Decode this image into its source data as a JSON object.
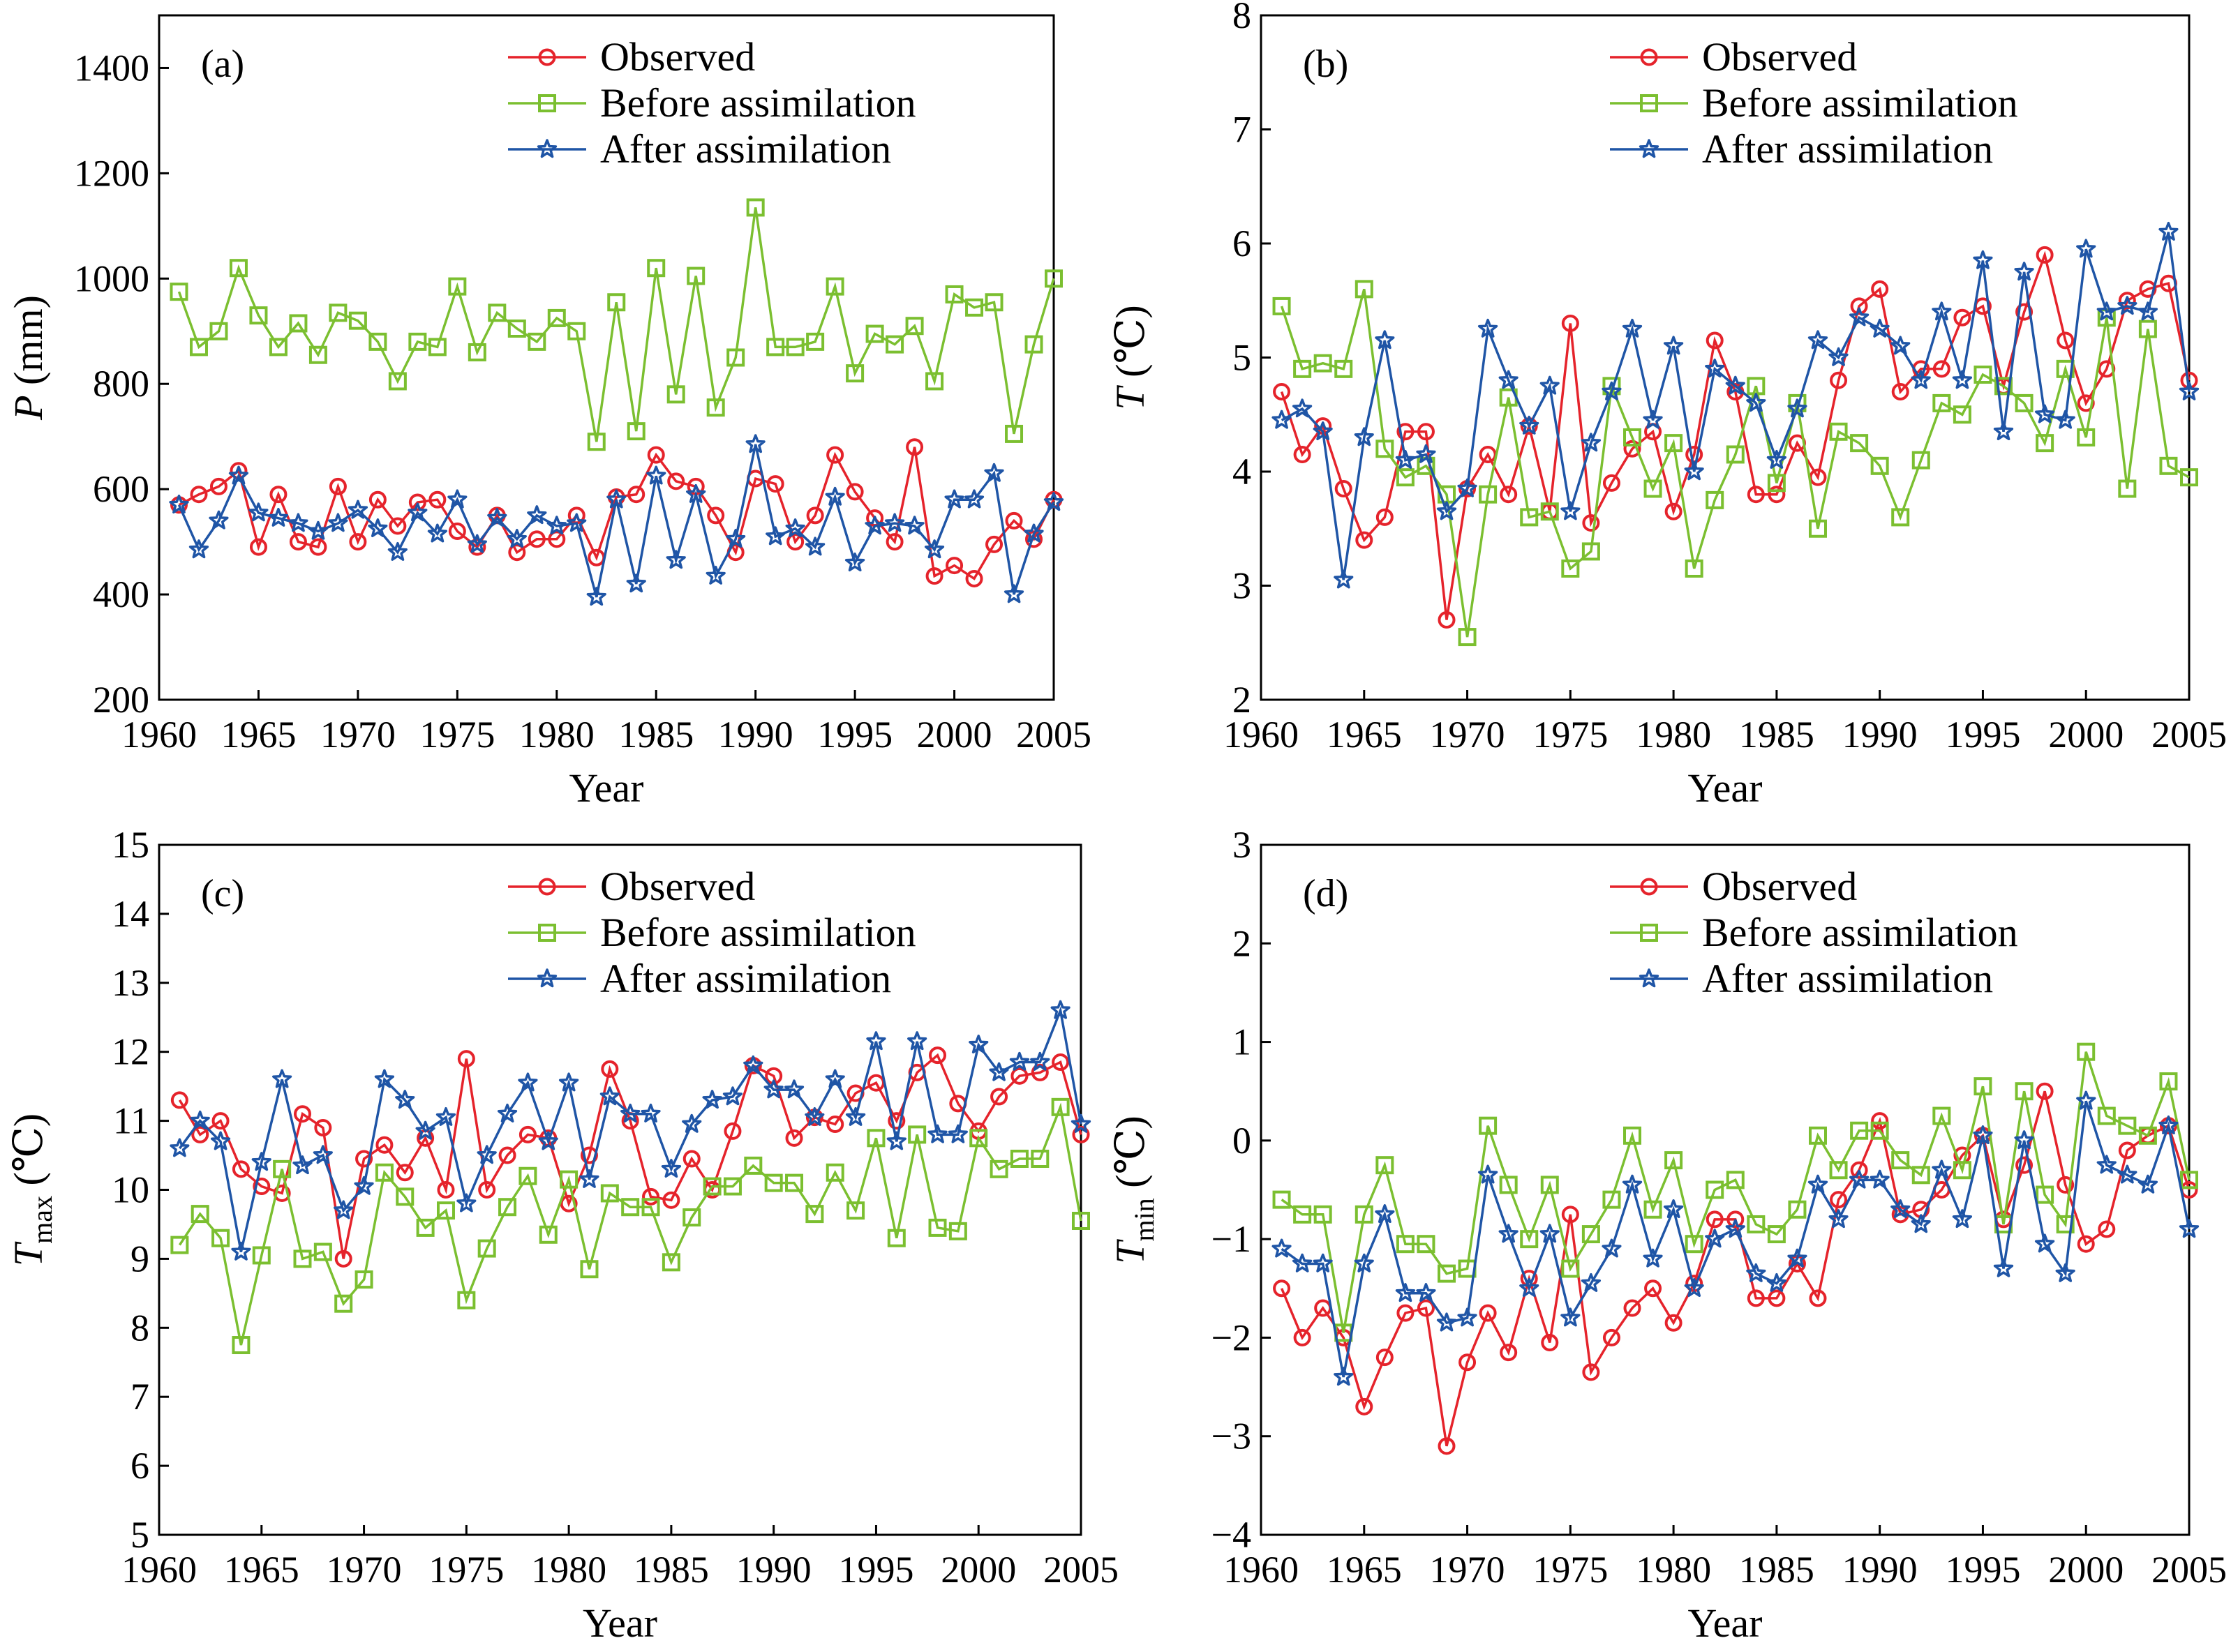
{
  "colors": {
    "observed": "#e5232b",
    "before": "#7bbf30",
    "after": "#1f55a6",
    "axis": "#000000"
  },
  "legend_labels": [
    "Observed",
    "Before assimilation",
    "After assimilation"
  ],
  "chart_data": [
    {
      "type": "line",
      "panel_label": "(a)",
      "xlabel": "Year",
      "ylabel_main": "P",
      "ylabel_sub": "",
      "ylabel_unit": " (mm)",
      "xlim": [
        1960,
        2005
      ],
      "ylim": [
        200,
        1500
      ],
      "xticks": [
        1960,
        1965,
        1970,
        1975,
        1980,
        1985,
        1990,
        1995,
        2000,
        2005
      ],
      "yticks": [
        200,
        400,
        600,
        800,
        1000,
        1200,
        1400
      ],
      "x": [
        1961,
        1962,
        1963,
        1964,
        1965,
        1966,
        1967,
        1968,
        1969,
        1970,
        1971,
        1972,
        1973,
        1974,
        1975,
        1976,
        1977,
        1978,
        1979,
        1980,
        1981,
        1982,
        1983,
        1984,
        1985,
        1986,
        1987,
        1988,
        1989,
        1990,
        1991,
        1992,
        1993,
        1994,
        1995,
        1996,
        1997,
        1998,
        1999,
        2000,
        2001,
        2002,
        2003,
        2004,
        2005
      ],
      "series": [
        {
          "name": "Observed",
          "values": [
            570,
            590,
            605,
            635,
            490,
            590,
            500,
            490,
            605,
            500,
            580,
            530,
            575,
            580,
            520,
            490,
            550,
            480,
            505,
            505,
            550,
            470,
            585,
            590,
            665,
            615,
            605,
            550,
            480,
            620,
            610,
            500,
            550,
            665,
            595,
            545,
            500,
            680,
            435,
            455,
            430,
            495,
            540,
            505,
            580
          ]
        },
        {
          "name": "Before assimilation",
          "values": [
            975,
            870,
            900,
            1020,
            930,
            870,
            915,
            855,
            935,
            920,
            880,
            805,
            880,
            870,
            985,
            860,
            935,
            905,
            880,
            925,
            900,
            690,
            955,
            710,
            1020,
            780,
            1005,
            755,
            850,
            1135,
            870,
            870,
            880,
            985,
            820,
            895,
            875,
            910,
            805,
            970,
            945,
            955,
            705,
            875,
            1000
          ]
        },
        {
          "name": "After assimilation",
          "values": [
            570,
            485,
            540,
            625,
            555,
            545,
            535,
            520,
            535,
            560,
            525,
            480,
            555,
            515,
            580,
            495,
            545,
            505,
            550,
            530,
            535,
            395,
            580,
            420,
            625,
            465,
            590,
            435,
            505,
            685,
            510,
            525,
            490,
            585,
            460,
            530,
            535,
            530,
            485,
            580,
            580,
            630,
            400,
            515,
            575
          ]
        }
      ]
    },
    {
      "type": "line",
      "panel_label": "(b)",
      "xlabel": "Year",
      "ylabel_main": "T",
      "ylabel_sub": "",
      "ylabel_unit": " (℃)",
      "xlim": [
        1960,
        2005
      ],
      "ylim": [
        2,
        8
      ],
      "xticks": [
        1960,
        1965,
        1970,
        1975,
        1980,
        1985,
        1990,
        1995,
        2000,
        2005
      ],
      "yticks": [
        2,
        3,
        4,
        5,
        6,
        7,
        8
      ],
      "x": [
        1961,
        1962,
        1963,
        1964,
        1965,
        1966,
        1967,
        1968,
        1969,
        1970,
        1971,
        1972,
        1973,
        1974,
        1975,
        1976,
        1977,
        1978,
        1979,
        1980,
        1981,
        1982,
        1983,
        1984,
        1985,
        1986,
        1987,
        1988,
        1989,
        1990,
        1991,
        1992,
        1993,
        1994,
        1995,
        1996,
        1997,
        1998,
        1999,
        2000,
        2001,
        2002,
        2003,
        2004,
        2005
      ],
      "series": [
        {
          "name": "Observed",
          "values": [
            4.7,
            4.15,
            4.4,
            3.85,
            3.4,
            3.6,
            4.35,
            4.35,
            2.7,
            3.85,
            4.15,
            3.8,
            4.4,
            3.65,
            5.3,
            3.55,
            3.9,
            4.2,
            4.35,
            3.65,
            4.15,
            5.15,
            4.7,
            3.8,
            3.8,
            4.25,
            3.95,
            4.8,
            5.45,
            5.6,
            4.7,
            4.9,
            4.9,
            5.35,
            5.45,
            4.75,
            5.4,
            5.9,
            5.15,
            4.6,
            4.9,
            5.5,
            5.6,
            5.65,
            4.8
          ]
        },
        {
          "name": "Before assimilation",
          "values": [
            5.45,
            4.9,
            4.95,
            4.9,
            5.6,
            4.2,
            3.95,
            4.05,
            3.8,
            2.55,
            3.8,
            4.65,
            3.6,
            3.65,
            3.15,
            3.3,
            4.75,
            4.3,
            3.85,
            4.25,
            3.15,
            3.75,
            4.15,
            4.75,
            3.9,
            4.6,
            3.5,
            4.35,
            4.25,
            4.05,
            3.6,
            4.1,
            4.6,
            4.5,
            4.85,
            4.75,
            4.6,
            4.25,
            4.9,
            4.3,
            5.35,
            3.85,
            5.25,
            4.05,
            3.95
          ]
        },
        {
          "name": "After assimilation",
          "values": [
            4.45,
            4.55,
            4.35,
            3.05,
            4.3,
            5.15,
            4.1,
            4.15,
            3.65,
            3.85,
            5.25,
            4.8,
            4.4,
            4.75,
            3.65,
            4.25,
            4.7,
            5.25,
            4.45,
            5.1,
            4.0,
            4.9,
            4.75,
            4.6,
            4.1,
            4.55,
            5.15,
            5.0,
            5.35,
            5.25,
            5.1,
            4.8,
            5.4,
            4.8,
            5.85,
            4.35,
            5.75,
            4.5,
            4.45,
            5.95,
            5.4,
            5.45,
            5.4,
            6.1,
            4.7
          ]
        }
      ]
    },
    {
      "type": "line",
      "panel_label": "(c)",
      "xlabel": "Year",
      "ylabel_main": "T",
      "ylabel_sub": "max",
      "ylabel_unit": " (℃)",
      "xlim": [
        1960,
        2005
      ],
      "ylim": [
        5,
        15
      ],
      "xticks": [
        1960,
        1965,
        1970,
        1975,
        1980,
        1985,
        1990,
        1995,
        2000,
        2005
      ],
      "yticks": [
        5,
        6,
        7,
        8,
        9,
        10,
        11,
        12,
        13,
        14,
        15
      ],
      "x": [
        1961,
        1962,
        1963,
        1964,
        1965,
        1966,
        1967,
        1968,
        1969,
        1970,
        1971,
        1972,
        1973,
        1974,
        1975,
        1976,
        1977,
        1978,
        1979,
        1980,
        1981,
        1982,
        1983,
        1984,
        1985,
        1986,
        1987,
        1988,
        1989,
        1990,
        1991,
        1992,
        1993,
        1994,
        1995,
        1996,
        1997,
        1998,
        1999,
        2000,
        2001,
        2002,
        2003,
        2004,
        2005
      ],
      "series": [
        {
          "name": "Observed",
          "values": [
            11.3,
            10.8,
            11.0,
            10.3,
            10.05,
            9.95,
            11.1,
            10.9,
            9.0,
            10.45,
            10.65,
            10.25,
            10.75,
            10.0,
            11.9,
            10.0,
            10.5,
            10.8,
            10.75,
            9.8,
            10.5,
            11.75,
            11.0,
            9.9,
            9.85,
            10.45,
            10.0,
            10.85,
            11.8,
            11.65,
            10.75,
            11.05,
            10.95,
            11.4,
            11.55,
            11.0,
            11.7,
            11.95,
            11.25,
            10.85,
            11.35,
            11.65,
            11.7,
            11.85,
            10.8
          ]
        },
        {
          "name": "Before assimilation",
          "values": [
            9.2,
            9.65,
            9.3,
            7.75,
            9.05,
            10.3,
            9.0,
            9.1,
            8.35,
            8.7,
            10.25,
            9.9,
            9.45,
            9.7,
            8.4,
            9.15,
            9.75,
            10.2,
            9.35,
            10.15,
            8.85,
            9.95,
            9.75,
            9.75,
            8.95,
            9.6,
            10.05,
            10.05,
            10.35,
            10.1,
            10.1,
            9.65,
            10.25,
            9.7,
            10.75,
            9.3,
            10.8,
            9.45,
            9.4,
            10.75,
            10.3,
            10.45,
            10.45,
            11.2,
            9.55
          ]
        },
        {
          "name": "After assimilation",
          "values": [
            10.6,
            11.0,
            10.7,
            9.1,
            10.4,
            11.6,
            10.35,
            10.5,
            9.7,
            10.05,
            11.6,
            11.3,
            10.85,
            11.05,
            9.8,
            10.5,
            11.1,
            11.55,
            10.7,
            11.55,
            10.15,
            11.35,
            11.1,
            11.1,
            10.3,
            10.95,
            11.3,
            11.35,
            11.8,
            11.45,
            11.45,
            11.05,
            11.6,
            11.05,
            12.15,
            10.7,
            12.15,
            10.8,
            10.8,
            12.1,
            11.7,
            11.85,
            11.85,
            12.6,
            10.95
          ]
        }
      ]
    },
    {
      "type": "line",
      "panel_label": "(d)",
      "xlabel": "Year",
      "ylabel_main": "T",
      "ylabel_sub": "min",
      "ylabel_unit": " (℃)",
      "xlim": [
        1960,
        2005
      ],
      "ylim": [
        -4,
        3
      ],
      "xticks": [
        1960,
        1965,
        1970,
        1975,
        1980,
        1985,
        1990,
        1995,
        2000,
        2005
      ],
      "yticks": [
        -4,
        -3,
        -2,
        -1,
        0,
        1,
        2,
        3
      ],
      "x": [
        1961,
        1962,
        1963,
        1964,
        1965,
        1966,
        1967,
        1968,
        1969,
        1970,
        1971,
        1972,
        1973,
        1974,
        1975,
        1976,
        1977,
        1978,
        1979,
        1980,
        1981,
        1982,
        1983,
        1984,
        1985,
        1986,
        1987,
        1988,
        1989,
        1990,
        1991,
        1992,
        1993,
        1994,
        1995,
        1996,
        1997,
        1998,
        1999,
        2000,
        2001,
        2002,
        2003,
        2004,
        2005
      ],
      "series": [
        {
          "name": "Observed",
          "values": [
            -1.5,
            -2.0,
            -1.7,
            -2.0,
            -2.7,
            -2.2,
            -1.75,
            -1.7,
            -3.1,
            -2.25,
            -1.75,
            -2.15,
            -1.4,
            -2.05,
            -0.75,
            -2.35,
            -2.0,
            -1.7,
            -1.5,
            -1.85,
            -1.45,
            -0.8,
            -0.8,
            -1.6,
            -1.6,
            -1.25,
            -1.6,
            -0.6,
            -0.3,
            0.2,
            -0.75,
            -0.7,
            -0.5,
            -0.15,
            0.05,
            -0.8,
            -0.25,
            0.5,
            -0.45,
            -1.05,
            -0.9,
            -0.1,
            0.05,
            0.15,
            -0.5
          ]
        },
        {
          "name": "Before assimilation",
          "values": [
            -0.6,
            -0.75,
            -0.75,
            -1.95,
            -0.75,
            -0.25,
            -1.05,
            -1.05,
            -1.35,
            -1.3,
            0.15,
            -0.45,
            -1.0,
            -0.45,
            -1.3,
            -0.95,
            -0.6,
            0.05,
            -0.7,
            -0.2,
            -1.05,
            -0.5,
            -0.4,
            -0.85,
            -0.95,
            -0.7,
            0.05,
            -0.3,
            0.1,
            0.1,
            -0.2,
            -0.35,
            0.25,
            -0.3,
            0.55,
            -0.85,
            0.5,
            -0.55,
            -0.85,
            0.9,
            0.25,
            0.15,
            0.05,
            0.6,
            -0.4
          ]
        },
        {
          "name": "After assimilation",
          "values": [
            -1.1,
            -1.25,
            -1.25,
            -2.4,
            -1.25,
            -0.75,
            -1.55,
            -1.55,
            -1.85,
            -1.8,
            -0.35,
            -0.95,
            -1.5,
            -0.95,
            -1.8,
            -1.45,
            -1.1,
            -0.45,
            -1.2,
            -0.7,
            -1.5,
            -1.0,
            -0.9,
            -1.35,
            -1.45,
            -1.2,
            -0.45,
            -0.8,
            -0.4,
            -0.4,
            -0.7,
            -0.85,
            -0.3,
            -0.8,
            0.05,
            -1.3,
            0.0,
            -1.05,
            -1.35,
            0.4,
            -0.25,
            -0.35,
            -0.45,
            0.15,
            -0.9
          ]
        }
      ]
    }
  ]
}
